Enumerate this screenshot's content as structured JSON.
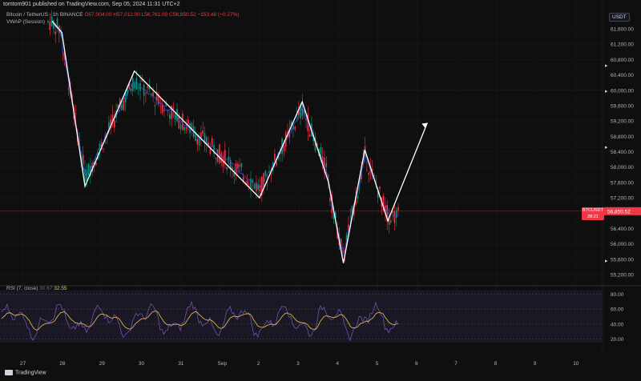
{
  "header": {
    "published_by": "tomtom901 published on TradingView.com, Sep 05, 2024 11:31 UTC+2",
    "symbol_name": "Bitcoin / TetherUS",
    "interval_exchange": "1h BINANCE",
    "open": "O57,004.00",
    "high": "H57,012.00",
    "low": "L56,761.00",
    "close": "C56,850.52",
    "change": "−153.48 (−0.27%)",
    "vwap_label": "VWAP (Session)",
    "currency": "USDT"
  },
  "price_axis": {
    "ticks": [
      "61,600.00",
      "61,200.00",
      "60,800.00",
      "60,400.00",
      "60,000.00",
      "59,600.00",
      "59,200.00",
      "58,800.00",
      "58,400.00",
      "58,000.00",
      "57,600.00",
      "57,200.00",
      "56,400.00",
      "56,000.00",
      "55,600.00",
      "55,200.00"
    ],
    "current_symbol": "BTCUSDT",
    "current_price": "56,850.52",
    "countdown": "28:21"
  },
  "rsi": {
    "label": "RSI (7, close)",
    "value1": "30.67",
    "value2": "32.55",
    "ticks": [
      "80.00",
      "60.00",
      "40.00",
      "20.00"
    ]
  },
  "time_axis": {
    "ticks": [
      "27",
      "28",
      "29",
      "30",
      "31",
      "Sep",
      "2",
      "3",
      "4",
      "5",
      "6",
      "7",
      "8",
      "9",
      "10"
    ]
  },
  "footer": {
    "brand": "TradingView"
  },
  "colors": {
    "bg": "#0f0f0f",
    "up": "#089981",
    "down": "#f23645",
    "vwap": "#2f4fd8",
    "rsi": "#7e57c2",
    "rsi_ma": "#f0c34e",
    "drawing": "#ffffff"
  },
  "chart_data": {
    "type": "candlestick",
    "symbol": "BTCUSDT",
    "ylim": [
      55000,
      61900
    ],
    "price_close_last": 56850.52,
    "zigzag_drawing": [
      {
        "x": "Aug 27 18:00",
        "y": 61800
      },
      {
        "x": "Aug 28 00:00",
        "y": 61500
      },
      {
        "x": "Aug 28 14:00",
        "y": 57500
      },
      {
        "x": "Aug 29 20:00",
        "y": 60500
      },
      {
        "x": "Sep 2 00:00",
        "y": 57200
      },
      {
        "x": "Sep 3 02:00",
        "y": 59700
      },
      {
        "x": "Sep 3 18:00",
        "y": 57600
      },
      {
        "x": "Sep 4 03:00",
        "y": 55500
      },
      {
        "x": "Sep 4 16:00",
        "y": 58450
      },
      {
        "x": "Sep 5 06:00",
        "y": 56600
      },
      {
        "x": "Sep 6 06:00",
        "y": 59150
      }
    ],
    "rsi_levels": [
      80,
      60,
      40,
      20
    ]
  }
}
